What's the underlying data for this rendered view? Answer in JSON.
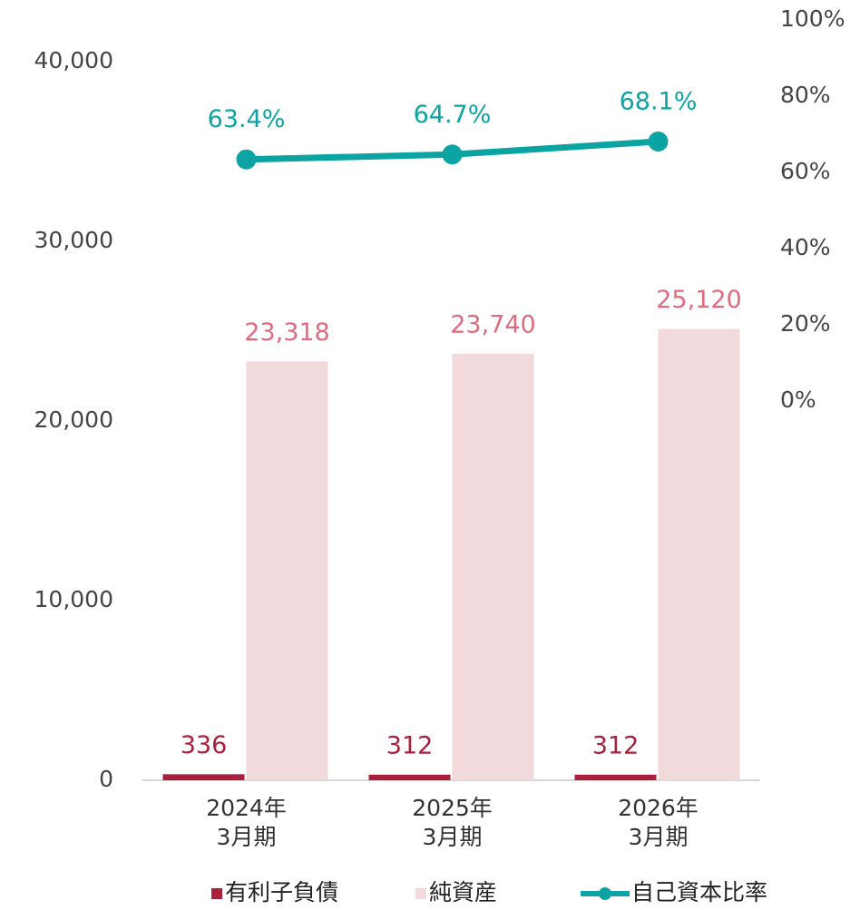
{
  "chart_data": {
    "type": "bar",
    "categories": [
      "2024年\n3月期",
      "2025年\n3月期",
      "2026年\n3月期"
    ],
    "series": [
      {
        "name": "有利子負債",
        "type": "bar",
        "color": "#a8203c",
        "label_color": "#a8203c",
        "values": [
          336,
          312,
          312
        ]
      },
      {
        "name": "純資産",
        "type": "bar",
        "color": "#f2d9dc",
        "label_color": "#df6b7e",
        "values": [
          23318,
          23740,
          25120
        ],
        "value_labels": [
          "23,318",
          "23,740",
          "25,120"
        ]
      },
      {
        "name": "自己資本比率",
        "type": "line",
        "axis": "y2",
        "color": "#0ba4a2",
        "label_color": "#0ba4a2",
        "values": [
          63.4,
          64.7,
          68.1
        ],
        "value_labels": [
          "63.4%",
          "64.7%",
          "68.1%"
        ]
      }
    ],
    "ylim": [
      0,
      40000
    ],
    "yticks": [
      0,
      {
        "value": 10000,
        "label": "10,000"
      },
      {
        "value": 20000,
        "label": "20,000"
      },
      {
        "value": 30000,
        "label": "30,000"
      },
      {
        "value": 40000,
        "label": "40,000"
      }
    ],
    "y2lim": [
      0,
      100
    ],
    "y2ticks": [
      {
        "value": 0,
        "label": "0%"
      },
      {
        "value": 20,
        "label": "20%"
      },
      {
        "value": 40,
        "label": "40%"
      },
      {
        "value": 60,
        "label": "60%"
      },
      {
        "value": 80,
        "label": "80%"
      },
      {
        "value": 100,
        "label": "100%"
      }
    ],
    "legend": "bottom"
  }
}
